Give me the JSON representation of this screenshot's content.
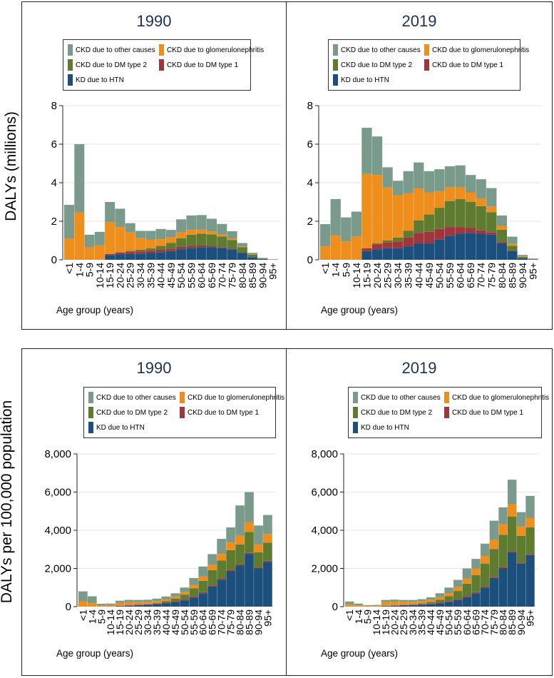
{
  "left_labels": {
    "top": "DALYs (millions)",
    "bottom": "DALYs per 100,000 population"
  },
  "legend_entries": {
    "other": "CKD due to other causes",
    "glom": "CKD due to glomerulonephritis",
    "dm2": "CKD due to DM type 2",
    "dm1": "CKD due to DM type 1",
    "htn": "KD due to HTN"
  },
  "colors": {
    "other": "#7a9a8c",
    "glom": "#ee8e1c",
    "dm2": "#5e7b2f",
    "dm1": "#a0353c",
    "htn": "#1c4f7c"
  },
  "chart_data": [
    {
      "type": "bar",
      "stacked": true,
      "title": "1990",
      "xlabel": "Age group (years)",
      "ylabel": "DALYs (millions)",
      "ylim": [
        0,
        8
      ],
      "yticks": [
        "0",
        "2",
        "4",
        "6",
        "8"
      ],
      "yticks_values": [
        0,
        2,
        4,
        6,
        8
      ],
      "categories": [
        "<1",
        "1-4",
        "5-9",
        "10-14",
        "15-19",
        "20-24",
        "25-29",
        "30-34",
        "35-39",
        "40-44",
        "45-49",
        "50-54",
        "55-59",
        "60-64",
        "65-69",
        "70-74",
        "75-79",
        "80-84",
        "85-89",
        "90-94",
        "95+"
      ],
      "series": [
        {
          "key": "htn",
          "name": "KD due to HTN",
          "values": [
            0,
            0,
            0,
            0,
            0.25,
            0.28,
            0.3,
            0.32,
            0.35,
            0.4,
            0.45,
            0.55,
            0.62,
            0.66,
            0.66,
            0.62,
            0.55,
            0.35,
            0.14,
            0.04,
            0.01
          ]
        },
        {
          "key": "dm1",
          "name": "CKD due to DM type 1",
          "values": [
            0,
            0,
            0,
            0,
            0.05,
            0.1,
            0.12,
            0.12,
            0.12,
            0.12,
            0.12,
            0.12,
            0.1,
            0.08,
            0.06,
            0.04,
            0.03,
            0.02,
            0.01,
            0,
            0
          ]
        },
        {
          "key": "dm2",
          "name": "CKD due to DM type 2",
          "values": [
            0,
            0,
            0,
            0,
            0,
            0.02,
            0.05,
            0.08,
            0.12,
            0.2,
            0.3,
            0.45,
            0.58,
            0.62,
            0.6,
            0.55,
            0.45,
            0.28,
            0.11,
            0.03,
            0.01
          ]
        },
        {
          "key": "glom",
          "name": "CKD due to glomerulonephritis",
          "values": [
            1.1,
            2.45,
            0.65,
            0.75,
            1.65,
            1.3,
            0.95,
            0.6,
            0.45,
            0.35,
            0.3,
            0.3,
            0.25,
            0.2,
            0.15,
            0.1,
            0.07,
            0.04,
            0.02,
            0.01,
            0
          ]
        },
        {
          "key": "other",
          "name": "CKD due to other causes",
          "values": [
            1.75,
            3.55,
            0.65,
            0.7,
            1.05,
            0.95,
            0.48,
            0.38,
            0.46,
            0.53,
            0.38,
            0.68,
            0.75,
            0.76,
            0.66,
            0.55,
            0.38,
            0.18,
            0.08,
            0.02,
            0.01
          ]
        }
      ]
    },
    {
      "type": "bar",
      "stacked": true,
      "title": "2019",
      "xlabel": "Age group (years)",
      "ylabel": "DALYs (millions)",
      "ylim": [
        0,
        8
      ],
      "yticks": [
        "0",
        "2",
        "4",
        "6",
        "8"
      ],
      "yticks_values": [
        0,
        2,
        4,
        6,
        8
      ],
      "categories": [
        "<1",
        "1-4",
        "5-9",
        "10-14",
        "15-19",
        "20-24",
        "25-29",
        "30-34",
        "35-39",
        "40-44",
        "45-49",
        "50-54",
        "55-59",
        "60-64",
        "65-69",
        "70-74",
        "75-79",
        "80-84",
        "85-89",
        "90-94",
        "95+"
      ],
      "series": [
        {
          "key": "htn",
          "name": "KD due to HTN",
          "values": [
            0,
            0,
            0,
            0,
            0.45,
            0.55,
            0.6,
            0.6,
            0.7,
            0.85,
            0.85,
            1.05,
            1.25,
            1.35,
            1.4,
            1.35,
            1.3,
            0.85,
            0.45,
            0.08,
            0.02
          ]
        },
        {
          "key": "dm1",
          "name": "CKD due to DM type 1",
          "values": [
            0,
            0,
            0,
            0,
            0.15,
            0.25,
            0.3,
            0.35,
            0.45,
            0.55,
            0.6,
            0.55,
            0.45,
            0.35,
            0.25,
            0.18,
            0.12,
            0.06,
            0.03,
            0.01,
            0
          ]
        },
        {
          "key": "dm2",
          "name": "CKD due to DM type 2",
          "values": [
            0,
            0,
            0,
            0,
            0,
            0.05,
            0.1,
            0.2,
            0.35,
            0.65,
            0.9,
            1.1,
            1.35,
            1.45,
            1.35,
            1.25,
            1.05,
            0.65,
            0.25,
            0.06,
            0.01
          ]
        },
        {
          "key": "glom",
          "name": "CKD due to glomerulonephritis",
          "values": [
            0.7,
            1.25,
            0.95,
            1.2,
            3.85,
            3.55,
            2.75,
            2.2,
            1.95,
            1.65,
            1.15,
            0.85,
            0.7,
            0.6,
            0.5,
            0.4,
            0.3,
            0.2,
            0.1,
            0.03,
            0.01
          ]
        },
        {
          "key": "other",
          "name": "CKD due to other causes",
          "values": [
            1.15,
            1.9,
            1.25,
            1.3,
            2.4,
            2.0,
            1.05,
            0.75,
            1.15,
            1.35,
            1.1,
            1.15,
            1.1,
            1.15,
            0.9,
            1.0,
            0.95,
            0.54,
            0.37,
            0.07,
            0.03
          ]
        }
      ]
    },
    {
      "type": "bar",
      "stacked": true,
      "title": "1990",
      "xlabel": "Age group (years)",
      "ylabel": "DALYs per 100,000 population",
      "ylim": [
        0,
        8000
      ],
      "yticks": [
        "0",
        "2,000",
        "4,000",
        "6,000",
        "8,000"
      ],
      "yticks_values": [
        0,
        2000,
        4000,
        6000,
        8000
      ],
      "categories": [
        "<1",
        "1-4",
        "5-9",
        "10-14",
        "15-19",
        "20-24",
        "25-29",
        "30-34",
        "35-39",
        "40-44",
        "45-49",
        "50-54",
        "55-59",
        "60-64",
        "65-69",
        "70-74",
        "75-79",
        "80-84",
        "85-89",
        "90-94",
        "95+"
      ],
      "series": [
        {
          "key": "htn",
          "name": "KD due to HTN",
          "values": [
            0,
            0,
            0,
            0,
            30,
            50,
            70,
            90,
            120,
            170,
            240,
            330,
            480,
            700,
            1050,
            1400,
            1850,
            2150,
            2750,
            2000,
            2350
          ]
        },
        {
          "key": "dm1",
          "name": "CKD due to DM type 1",
          "values": [
            0,
            0,
            0,
            0,
            10,
            20,
            25,
            30,
            35,
            40,
            45,
            50,
            55,
            55,
            60,
            60,
            60,
            60,
            60,
            50,
            50
          ]
        },
        {
          "key": "dm2",
          "name": "CKD due to DM type 2",
          "values": [
            0,
            0,
            0,
            0,
            0,
            5,
            10,
            20,
            40,
            80,
            140,
            250,
            420,
            600,
            800,
            950,
            1050,
            1050,
            1100,
            800,
            950
          ]
        },
        {
          "key": "glom",
          "name": "CKD due to glomerulonephritis",
          "values": [
            280,
            180,
            60,
            80,
            160,
            160,
            130,
            110,
            100,
            100,
            110,
            130,
            170,
            220,
            280,
            350,
            400,
            450,
            500,
            400,
            450
          ]
        },
        {
          "key": "other",
          "name": "CKD due to other causes",
          "values": [
            520,
            360,
            90,
            80,
            110,
            120,
            115,
            110,
            125,
            140,
            165,
            240,
            375,
            525,
            560,
            790,
            790,
            1590,
            1590,
            1000,
            1000
          ]
        }
      ]
    },
    {
      "type": "bar",
      "stacked": true,
      "title": "2019",
      "xlabel": "Age group (years)",
      "ylabel": "DALYs per 100,000 population",
      "ylim": [
        0,
        8000
      ],
      "yticks": [
        "0",
        "2,000",
        "4,000",
        "6,000",
        "8,000"
      ],
      "yticks_values": [
        0,
        2000,
        4000,
        6000,
        8000
      ],
      "categories": [
        "<1",
        "1-4",
        "5-9",
        "10-14",
        "15-19",
        "20-24",
        "25-29",
        "30-34",
        "35-39",
        "40-44",
        "45-49",
        "50-54",
        "55-59",
        "60-64",
        "65-69",
        "70-74",
        "75-79",
        "80-84",
        "85-89",
        "90-94",
        "95+"
      ],
      "series": [
        {
          "key": "htn",
          "name": "KD due to HTN",
          "values": [
            0,
            0,
            0,
            0,
            30,
            45,
            55,
            70,
            90,
            120,
            170,
            240,
            340,
            500,
            700,
            1000,
            1500,
            2000,
            2850,
            2250,
            2700
          ]
        },
        {
          "key": "dm1",
          "name": "CKD due to DM type 1",
          "values": [
            0,
            0,
            0,
            0,
            10,
            20,
            25,
            30,
            35,
            40,
            45,
            50,
            50,
            55,
            55,
            55,
            60,
            60,
            60,
            55,
            55
          ]
        },
        {
          "key": "dm2",
          "name": "CKD due to DM type 2",
          "values": [
            0,
            0,
            0,
            0,
            0,
            5,
            10,
            20,
            40,
            80,
            150,
            260,
            430,
            650,
            900,
            1200,
            1450,
            1700,
            1800,
            1400,
            1400
          ]
        },
        {
          "key": "glom",
          "name": "CKD due to glomerulonephritis",
          "values": [
            120,
            70,
            40,
            50,
            200,
            190,
            160,
            130,
            120,
            120,
            130,
            160,
            200,
            260,
            330,
            400,
            480,
            550,
            650,
            500,
            500
          ]
        },
        {
          "key": "other",
          "name": "CKD due to other causes",
          "values": [
            150,
            90,
            40,
            40,
            110,
            110,
            100,
            100,
            105,
            130,
            205,
            290,
            380,
            535,
            515,
            645,
            1010,
            890,
            1290,
            745,
            1145
          ]
        }
      ]
    }
  ]
}
